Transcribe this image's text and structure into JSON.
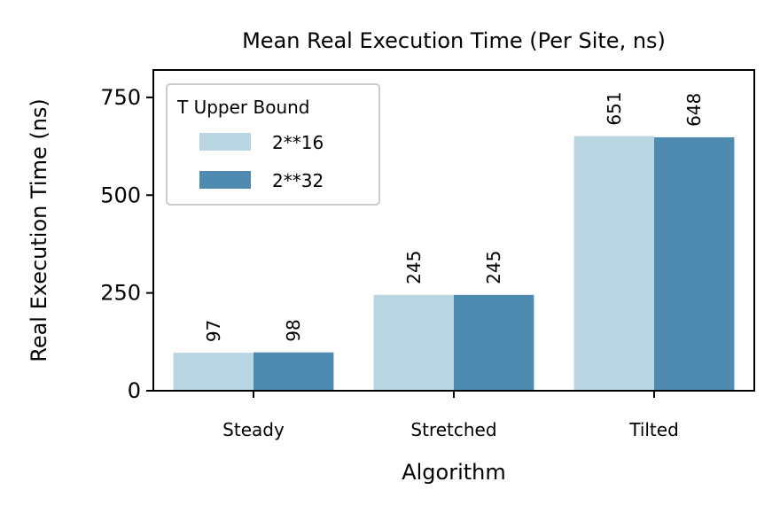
{
  "chart_data": {
    "type": "bar",
    "title": "Mean Real Execution Time (Per Site, ns)",
    "xlabel": "Algorithm",
    "ylabel": "Real Execution Time (ns)",
    "categories": [
      "Steady",
      "Stretched",
      "Tilted"
    ],
    "series": [
      {
        "name": "2**16",
        "values": [
          97,
          245,
          651
        ],
        "color": "#b9d5e2"
      },
      {
        "name": "2**32",
        "values": [
          98,
          245,
          648
        ],
        "color": "#4f8ab1"
      }
    ],
    "data_labels": [
      [
        "97",
        "245",
        "651"
      ],
      [
        "98",
        "245",
        "648"
      ]
    ],
    "ylim": [
      0,
      820
    ],
    "yticks": [
      0,
      250,
      500,
      750
    ],
    "ytick_labels": [
      "0",
      "250",
      "500",
      "750"
    ],
    "legend": {
      "title": "T Upper Bound",
      "placement": "top-left"
    },
    "grid": false
  }
}
